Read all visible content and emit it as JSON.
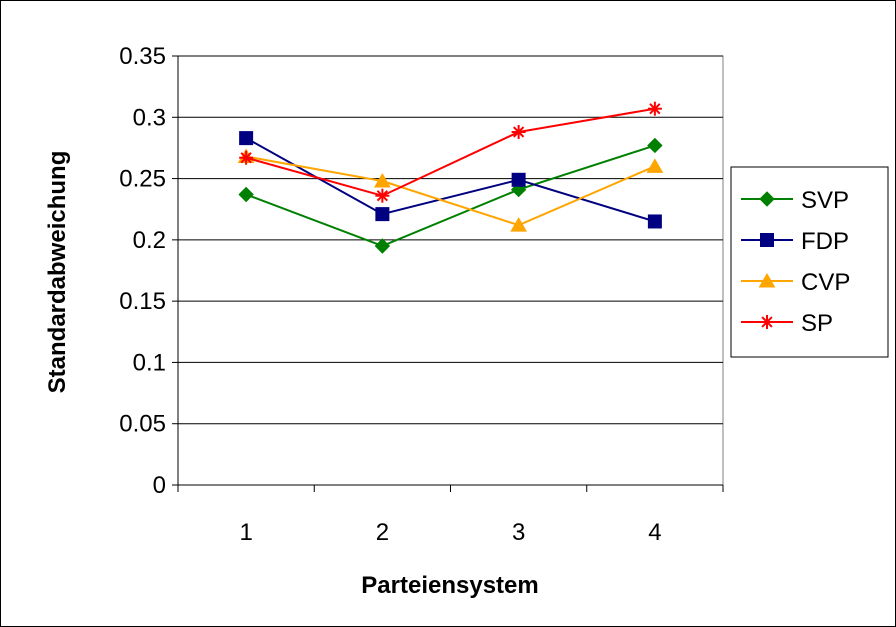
{
  "chart_data": {
    "type": "line",
    "categories": [
      "1",
      "2",
      "3",
      "4"
    ],
    "xlabel": "Parteiensystem",
    "ylabel": "Standardabweichung",
    "ylim": [
      0,
      0.35
    ],
    "yticks": [
      "0",
      "0.05",
      "0.1",
      "0.15",
      "0.2",
      "0.25",
      "0.3",
      "0.35"
    ],
    "grid": true,
    "legend_position": "right",
    "series": [
      {
        "name": "SVP",
        "values": [
          0.237,
          0.195,
          0.241,
          0.277
        ],
        "color": "#008000",
        "marker": "diamond"
      },
      {
        "name": "FDP",
        "values": [
          0.283,
          0.221,
          0.249,
          0.215
        ],
        "color": "#000080",
        "marker": "square"
      },
      {
        "name": "CVP",
        "values": [
          0.268,
          0.248,
          0.212,
          0.26
        ],
        "color": "#FFA500",
        "marker": "triangle"
      },
      {
        "name": "SP",
        "values": [
          0.267,
          0.236,
          0.288,
          0.307
        ],
        "color": "#FF0000",
        "marker": "star"
      }
    ]
  }
}
